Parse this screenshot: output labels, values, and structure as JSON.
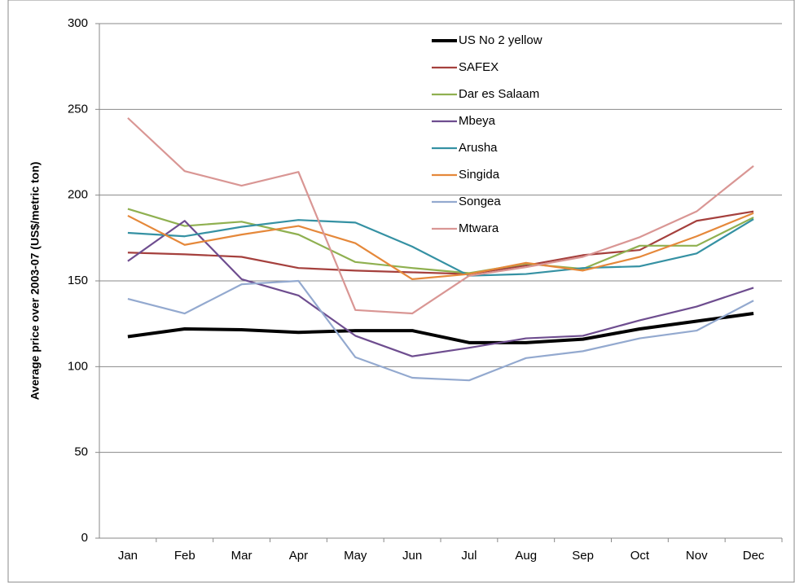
{
  "chart_data": {
    "type": "line",
    "y_label": "Average price over 2003-07 (US$/metric ton)",
    "categories": [
      "Jan",
      "Feb",
      "Mar",
      "Apr",
      "May",
      "Jun",
      "Jul",
      "Aug",
      "Sep",
      "Oct",
      "Nov",
      "Dec"
    ],
    "ylim": [
      0,
      300
    ],
    "yticks": [
      0,
      50,
      100,
      150,
      200,
      250,
      300
    ],
    "grid": true,
    "legend": "top",
    "series": [
      {
        "name": "US No 2 yellow",
        "color": "#000000",
        "values": [
          117.5,
          122,
          121.5,
          120,
          121,
          121,
          114,
          114,
          116,
          122,
          126.5,
          131
        ]
      },
      {
        "name": "SAFEX",
        "color": "#a5403d",
        "values": [
          166.5,
          165.5,
          164,
          157.5,
          156,
          155,
          154,
          159,
          165,
          168,
          185,
          190.5
        ]
      },
      {
        "name": "Dar es Salaam",
        "color": "#8fb050",
        "values": [
          192,
          182,
          184.5,
          177,
          161,
          157.5,
          154.5,
          160,
          157,
          170.5,
          170.5,
          187
        ]
      },
      {
        "name": "Mbeya",
        "color": "#6e4d8f",
        "values": [
          161.5,
          185,
          151,
          141.5,
          118,
          106,
          111,
          116.5,
          118,
          127,
          135,
          146
        ]
      },
      {
        "name": "Arusha",
        "color": "#3591a3",
        "values": [
          178,
          176,
          181.5,
          185.5,
          184,
          170,
          153,
          154,
          157.5,
          158.5,
          166,
          186
        ]
      },
      {
        "name": "Singida",
        "color": "#e5883a",
        "values": [
          188,
          171,
          177,
          182,
          172,
          151,
          154,
          160.5,
          156,
          164,
          176,
          189.5
        ]
      },
      {
        "name": "Songea",
        "color": "#93a9cf",
        "values": [
          139.5,
          131,
          148,
          150,
          105.5,
          93.5,
          92,
          105,
          109,
          116.5,
          121,
          138.5
        ]
      },
      {
        "name": "Mtwara",
        "color": "#d99694",
        "values": [
          245,
          214,
          205.5,
          213.5,
          133,
          131,
          153,
          158,
          164,
          175.5,
          190.5,
          217
        ]
      }
    ]
  }
}
